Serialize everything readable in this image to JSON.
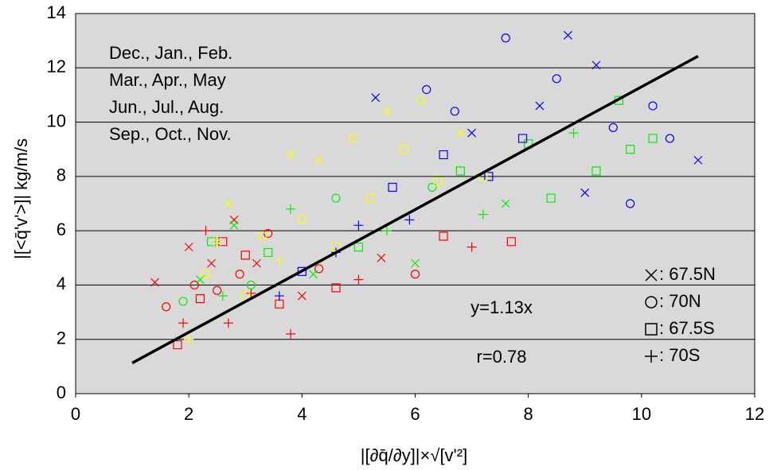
{
  "chart_data": {
    "type": "scatter",
    "ylabel": "|[<q̄'v'>]|   kg/m/s",
    "xlabel": "|[∂q̄/∂y]|×√[v'²]",
    "xlim": [
      0,
      12
    ],
    "ylim": [
      0,
      14
    ],
    "xticks": [
      0,
      2,
      4,
      6,
      8,
      10,
      12
    ],
    "yticks": [
      0,
      2,
      4,
      6,
      8,
      10,
      12,
      14
    ],
    "grid": true,
    "series": [
      {
        "name": "Dec., Jan., Feb.",
        "color": "#ff0000",
        "x": [
          1.4,
          1.6,
          1.8,
          1.9,
          2.0,
          2.1,
          2.2,
          2.3,
          2.4,
          2.5,
          2.6,
          2.7,
          2.8,
          2.9,
          3.0,
          3.1,
          3.2,
          3.4,
          3.6,
          3.8,
          4.0,
          4.3,
          4.6,
          5.0,
          5.4,
          6.0,
          6.5,
          7.0,
          7.7
        ],
        "y": [
          4.1,
          3.2,
          1.8,
          2.6,
          5.4,
          4.0,
          3.5,
          6.0,
          4.8,
          3.8,
          5.6,
          2.6,
          6.4,
          4.4,
          5.1,
          3.7,
          4.8,
          5.9,
          3.3,
          2.2,
          3.6,
          4.6,
          3.9,
          4.2,
          5.0,
          4.4,
          5.8,
          5.4,
          5.6
        ],
        "markers": [
          "x",
          "o",
          "s",
          "+",
          "x",
          "o",
          "s",
          "+",
          "x",
          "o",
          "s",
          "+",
          "x",
          "o",
          "s",
          "+",
          "x",
          "o",
          "s",
          "+",
          "x",
          "o",
          "s",
          "+",
          "x",
          "o",
          "s",
          "+",
          "s"
        ]
      },
      {
        "name": "Mar., Apr., May",
        "color": "#00ee00",
        "x": [
          1.9,
          2.2,
          2.4,
          2.6,
          2.8,
          3.1,
          3.4,
          3.8,
          4.2,
          4.6,
          5.0,
          5.5,
          6.0,
          6.3,
          6.8,
          7.2,
          7.6,
          8.0,
          8.4,
          8.8,
          9.2,
          9.6,
          9.8,
          10.2
        ],
        "y": [
          3.4,
          4.2,
          5.6,
          3.6,
          6.2,
          4.0,
          5.2,
          6.8,
          4.4,
          7.2,
          5.4,
          6.0,
          4.8,
          7.6,
          8.2,
          6.6,
          7.0,
          9.2,
          7.2,
          9.6,
          8.2,
          10.8,
          9.0,
          9.4
        ],
        "markers": [
          "o",
          "x",
          "s",
          "+",
          "x",
          "o",
          "s",
          "+",
          "x",
          "o",
          "s",
          "+",
          "x",
          "o",
          "s",
          "+",
          "x",
          "s",
          "s",
          "+",
          "s",
          "s",
          "s",
          "s"
        ]
      },
      {
        "name": "Jun., Jul., Aug.",
        "color": "#0000ff",
        "x": [
          3.6,
          4.0,
          4.6,
          5.0,
          5.3,
          5.6,
          5.9,
          6.2,
          6.5,
          6.7,
          7.0,
          7.3,
          7.6,
          7.9,
          8.2,
          8.5,
          8.7,
          9.0,
          9.2,
          9.5,
          9.8,
          10.2,
          10.5,
          11.0
        ],
        "y": [
          3.6,
          4.5,
          5.2,
          6.2,
          10.9,
          7.6,
          6.4,
          11.2,
          8.8,
          10.4,
          9.6,
          8.0,
          13.1,
          9.4,
          10.6,
          11.6,
          13.2,
          7.4,
          12.1,
          9.8,
          7.0,
          10.6,
          9.4,
          8.6
        ],
        "markers": [
          "+",
          "s",
          "+",
          "+",
          "x",
          "s",
          "+",
          "o",
          "s",
          "o",
          "x",
          "s",
          "o",
          "s",
          "x",
          "o",
          "x",
          "x",
          "x",
          "o",
          "o",
          "o",
          "o",
          "x"
        ]
      },
      {
        "name": "Sep., Oct., Nov.",
        "color": "#ffff00",
        "x": [
          2.0,
          2.3,
          2.5,
          2.7,
          3.0,
          3.3,
          3.6,
          3.8,
          4.0,
          4.3,
          4.6,
          4.9,
          5.2,
          5.5,
          5.8,
          6.1,
          6.4,
          6.8,
          7.2
        ],
        "y": [
          2.0,
          4.4,
          5.6,
          7.0,
          3.6,
          5.8,
          4.9,
          8.8,
          6.4,
          8.6,
          5.4,
          9.4,
          7.2,
          10.4,
          9.0,
          10.8,
          7.8,
          9.6,
          8.0
        ],
        "markers": [
          "+",
          "o",
          "x",
          "x",
          "s",
          "o",
          "+",
          "x",
          "o",
          "x",
          "s",
          "o",
          "s",
          "x",
          "s",
          "o",
          "s",
          "x",
          "s"
        ]
      }
    ],
    "marker_legend": [
      {
        "symbol": "x",
        "label": ": 67.5N"
      },
      {
        "symbol": "o",
        "label": ": 70N"
      },
      {
        "symbol": "s",
        "label": ": 67.5S"
      },
      {
        "symbol": "+",
        "label": ": 70S"
      }
    ],
    "fit": {
      "slope": 1.13,
      "x_range": [
        1,
        11
      ]
    },
    "annotations": [
      "y=1.13x",
      "r=0.78"
    ]
  }
}
